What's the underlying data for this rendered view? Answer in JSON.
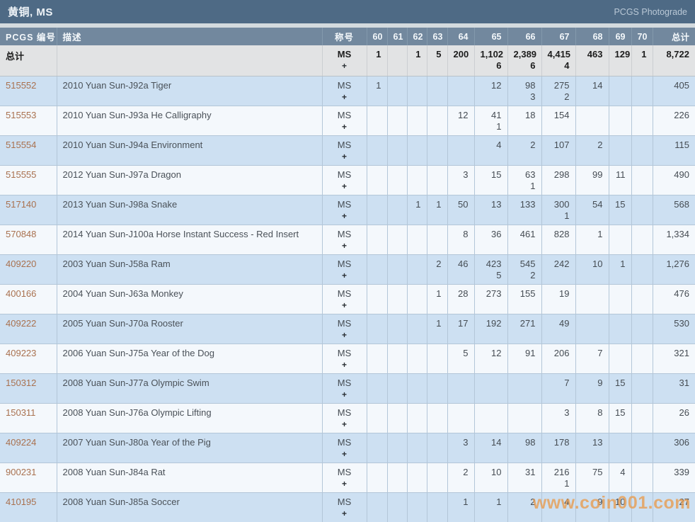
{
  "title_bar": {
    "title": "黄铜, MS",
    "link": "PCGS Photograde"
  },
  "watermark": "www.coin001.com",
  "colors": {
    "title_bar_bg": "#4e6a85",
    "header_bg": "#72889e",
    "row_blue": "#cde0f2",
    "row_white": "#f4f8fc",
    "total_row_bg": "#e2e3e4",
    "pcgs_id": "#a9714f",
    "watermark": "#e99b4d"
  },
  "table": {
    "columns": [
      {
        "key": "id",
        "label": "PCGS 编号"
      },
      {
        "key": "desc",
        "label": "描述"
      },
      {
        "key": "desig",
        "label": "称号"
      },
      {
        "key": "g60",
        "label": "60"
      },
      {
        "key": "g61",
        "label": "61"
      },
      {
        "key": "g62",
        "label": "62"
      },
      {
        "key": "g63",
        "label": "63"
      },
      {
        "key": "g64",
        "label": "64"
      },
      {
        "key": "g65",
        "label": "65"
      },
      {
        "key": "g66",
        "label": "66"
      },
      {
        "key": "g67",
        "label": "67"
      },
      {
        "key": "g68",
        "label": "68"
      },
      {
        "key": "g69",
        "label": "69"
      },
      {
        "key": "g70",
        "label": "70"
      },
      {
        "key": "total",
        "label": "总计"
      }
    ],
    "designation": {
      "line1": "MS",
      "line2": "+"
    },
    "total_row": {
      "label": "总计",
      "desc": "",
      "grades": {
        "g60": [
          "1"
        ],
        "g62": [
          "1"
        ],
        "g63": [
          "5"
        ],
        "g64": [
          "200"
        ],
        "g65": [
          "1,102",
          "6"
        ],
        "g66": [
          "2,389",
          "6"
        ],
        "g67": [
          "4,415",
          "4"
        ],
        "g68": [
          "463"
        ],
        "g69": [
          "129"
        ],
        "g70": [
          "1"
        ]
      },
      "total": "8,722"
    },
    "rows": [
      {
        "id": "515552",
        "desc": "2010 Yuan Sun-J92a Tiger",
        "grades": {
          "g60": [
            "1"
          ],
          "g65": [
            "12"
          ],
          "g66": [
            "98",
            "3"
          ],
          "g67": [
            "275",
            "2"
          ],
          "g68": [
            "14"
          ]
        },
        "total": "405"
      },
      {
        "id": "515553",
        "desc": "2010 Yuan Sun-J93a He Calligraphy",
        "grades": {
          "g64": [
            "12"
          ],
          "g65": [
            "41",
            "1"
          ],
          "g66": [
            "18"
          ],
          "g67": [
            "154"
          ]
        },
        "total": "226"
      },
      {
        "id": "515554",
        "desc": "2010 Yuan Sun-J94a Environment",
        "grades": {
          "g65": [
            "4"
          ],
          "g66": [
            "2"
          ],
          "g67": [
            "107"
          ],
          "g68": [
            "2"
          ]
        },
        "total": "115"
      },
      {
        "id": "515555",
        "desc": "2012 Yuan Sun-J97a Dragon",
        "grades": {
          "g64": [
            "3"
          ],
          "g65": [
            "15"
          ],
          "g66": [
            "63",
            "1"
          ],
          "g67": [
            "298"
          ],
          "g68": [
            "99"
          ],
          "g69": [
            "11"
          ]
        },
        "total": "490"
      },
      {
        "id": "517140",
        "desc": "2013 Yuan Sun-J98a Snake",
        "grades": {
          "g62": [
            "1"
          ],
          "g63": [
            "1"
          ],
          "g64": [
            "50"
          ],
          "g65": [
            "13"
          ],
          "g66": [
            "133"
          ],
          "g67": [
            "300",
            "1"
          ],
          "g68": [
            "54"
          ],
          "g69": [
            "15"
          ]
        },
        "total": "568"
      },
      {
        "id": "570848",
        "desc": "2014 Yuan Sun-J100a Horse Instant Success - Red Insert",
        "grades": {
          "g64": [
            "8"
          ],
          "g65": [
            "36"
          ],
          "g66": [
            "461"
          ],
          "g67": [
            "828"
          ],
          "g68": [
            "1"
          ]
        },
        "total": "1,334"
      },
      {
        "id": "409220",
        "desc": "2003 Yuan Sun-J58a Ram",
        "grades": {
          "g63": [
            "2"
          ],
          "g64": [
            "46"
          ],
          "g65": [
            "423",
            "5"
          ],
          "g66": [
            "545",
            "2"
          ],
          "g67": [
            "242"
          ],
          "g68": [
            "10"
          ],
          "g69": [
            "1"
          ]
        },
        "total": "1,276"
      },
      {
        "id": "400166",
        "desc": "2004 Yuan Sun-J63a Monkey",
        "grades": {
          "g63": [
            "1"
          ],
          "g64": [
            "28"
          ],
          "g65": [
            "273"
          ],
          "g66": [
            "155"
          ],
          "g67": [
            "19"
          ]
        },
        "total": "476"
      },
      {
        "id": "409222",
        "desc": "2005 Yuan Sun-J70a Rooster",
        "grades": {
          "g63": [
            "1"
          ],
          "g64": [
            "17"
          ],
          "g65": [
            "192"
          ],
          "g66": [
            "271"
          ],
          "g67": [
            "49"
          ]
        },
        "total": "530"
      },
      {
        "id": "409223",
        "desc": "2006 Yuan Sun-J75a Year of the Dog",
        "grades": {
          "g64": [
            "5"
          ],
          "g65": [
            "12"
          ],
          "g66": [
            "91"
          ],
          "g67": [
            "206"
          ],
          "g68": [
            "7"
          ]
        },
        "total": "321"
      },
      {
        "id": "150312",
        "desc": "2008 Yuan Sun-J77a Olympic Swim",
        "grades": {
          "g67": [
            "7"
          ],
          "g68": [
            "9"
          ],
          "g69": [
            "15"
          ]
        },
        "total": "31"
      },
      {
        "id": "150311",
        "desc": "2008 Yuan Sun-J76a Olympic Lifting",
        "grades": {
          "g67": [
            "3"
          ],
          "g68": [
            "8"
          ],
          "g69": [
            "15"
          ]
        },
        "total": "26"
      },
      {
        "id": "409224",
        "desc": "2007 Yuan Sun-J80a Year of the Pig",
        "grades": {
          "g64": [
            "3"
          ],
          "g65": [
            "14"
          ],
          "g66": [
            "98"
          ],
          "g67": [
            "178"
          ],
          "g68": [
            "13"
          ]
        },
        "total": "306"
      },
      {
        "id": "900231",
        "desc": "2008 Yuan Sun-J84a Rat",
        "grades": {
          "g64": [
            "2"
          ],
          "g65": [
            "10"
          ],
          "g66": [
            "31"
          ],
          "g67": [
            "216",
            "1"
          ],
          "g68": [
            "75"
          ],
          "g69": [
            "4"
          ]
        },
        "total": "339"
      },
      {
        "id": "410195",
        "desc": "2008 Yuan Sun-J85a Soccer",
        "grades": {
          "g64": [
            "1"
          ],
          "g65": [
            "1"
          ],
          "g66": [
            "2"
          ],
          "g67": [
            "4"
          ],
          "g68": [
            "9"
          ],
          "g69": [
            "10"
          ]
        },
        "total": "27"
      }
    ]
  }
}
